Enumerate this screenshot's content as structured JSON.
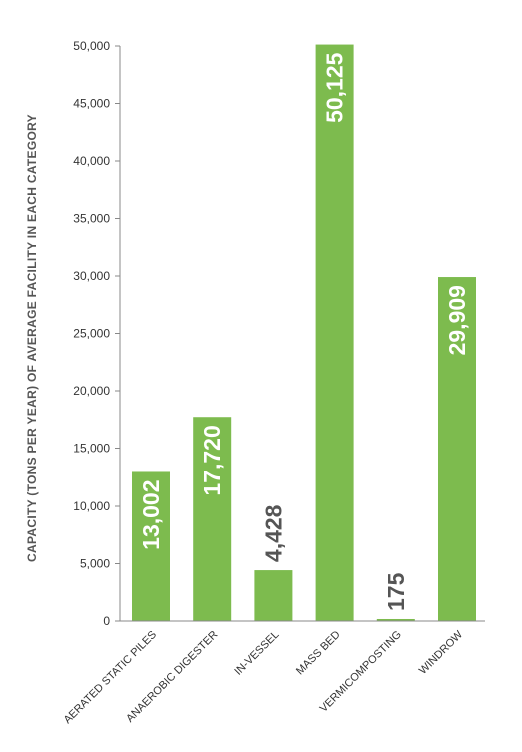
{
  "chart_data": {
    "type": "bar",
    "categories": [
      "AERATED STATIC PILES",
      "ANAEROBIC DIGESTER",
      "IN-VESSEL",
      "MASS BED",
      "VERMICOMPOSTING",
      "WINDROW"
    ],
    "values": [
      13002,
      17720,
      4428,
      50125,
      175,
      29909
    ],
    "data_labels": [
      "13,002",
      "17,720",
      "4,428",
      "50,125",
      "175",
      "29,909"
    ],
    "ylabel": "CAPACITY (TONS PER YEAR) OF AVERAGE FACILITY IN EACH CATEGORY",
    "xlabel": "",
    "ylim": [
      0,
      50000
    ],
    "y_ticks": [
      0,
      5000,
      10000,
      15000,
      20000,
      25000,
      30000,
      35000,
      40000,
      45000,
      50000
    ],
    "y_tick_labels": [
      "0",
      "5,000",
      "10,000",
      "15,000",
      "20,000",
      "25,000",
      "30,000",
      "35,000",
      "40,000",
      "45,000",
      "50,000"
    ],
    "grid": false,
    "colors": {
      "bar": "#7dbb4e",
      "label_inside": "#ffffff",
      "label_outside": "#555555",
      "axis": "#888888"
    }
  }
}
